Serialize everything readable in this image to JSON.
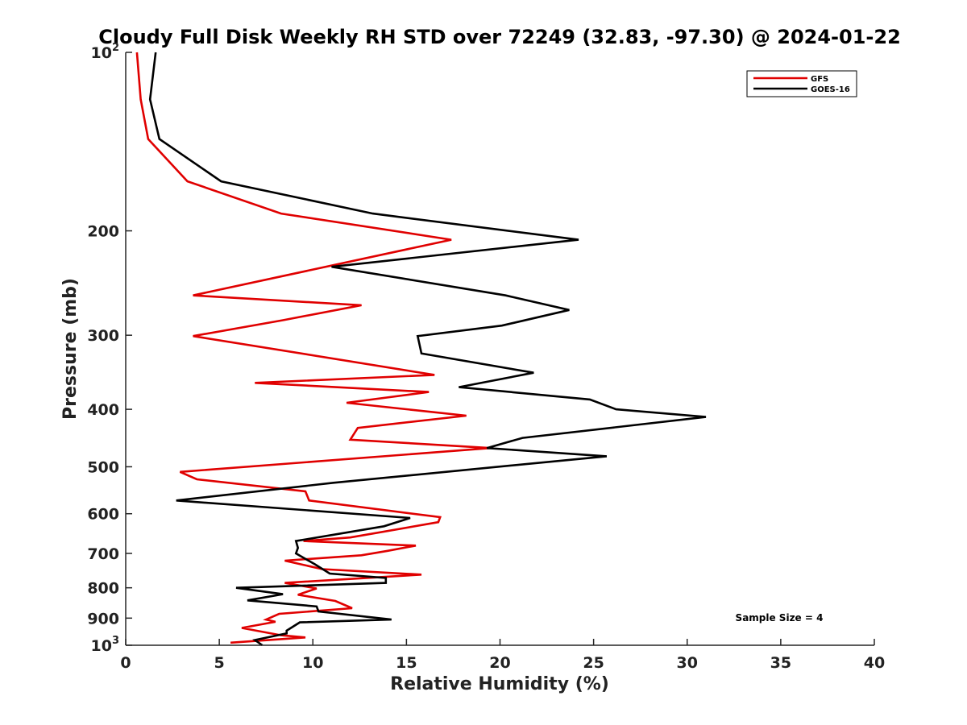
{
  "chart_data": {
    "type": "line",
    "title": "Cloudy Full Disk Weekly RH STD over 72249 (32.83, -97.30) @ 2024-01-22",
    "xlabel": "Relative Humidity (%)",
    "ylabel": "Pressure (mb)",
    "xlim": [
      0,
      40
    ],
    "ylim": [
      100,
      1000
    ],
    "y_scale": "log",
    "y_reversed": true,
    "x_ticks": [
      0,
      5,
      10,
      15,
      20,
      25,
      30,
      35,
      40
    ],
    "x_tick_labels": [
      "0",
      "5",
      "10",
      "15",
      "20",
      "25",
      "30",
      "35",
      "40"
    ],
    "y_ticks": [
      100,
      200,
      300,
      400,
      500,
      600,
      700,
      800,
      900,
      1000
    ],
    "y_tick_labels": [
      {
        "base": "10",
        "exp": "2"
      },
      {
        "base": "200",
        "exp": ""
      },
      {
        "base": "300",
        "exp": ""
      },
      {
        "base": "400",
        "exp": ""
      },
      {
        "base": "500",
        "exp": ""
      },
      {
        "base": "600",
        "exp": ""
      },
      {
        "base": "700",
        "exp": ""
      },
      {
        "base": "800",
        "exp": ""
      },
      {
        "base": "900",
        "exp": ""
      },
      {
        "base": "10",
        "exp": "3"
      }
    ],
    "grid": false,
    "legend_position": "top-right",
    "annotation": "Sample Size = 4",
    "series": [
      {
        "name": "GFS",
        "color": "#e00000",
        "points": [
          [
            0.6,
            100
          ],
          [
            0.8,
            120
          ],
          [
            1.2,
            140
          ],
          [
            3.3,
            165
          ],
          [
            8.3,
            187
          ],
          [
            17.4,
            207
          ],
          [
            3.6,
            257
          ],
          [
            12.6,
            267
          ],
          [
            8.4,
            283
          ],
          [
            3.6,
            301
          ],
          [
            16.5,
            350
          ],
          [
            6.9,
            361
          ],
          [
            16.2,
            374
          ],
          [
            11.8,
            390
          ],
          [
            18.2,
            410
          ],
          [
            12.4,
            430
          ],
          [
            12.0,
            450
          ],
          [
            19.5,
            465
          ],
          [
            2.9,
            510
          ],
          [
            3.8,
            525
          ],
          [
            9.6,
            550
          ],
          [
            9.8,
            570
          ],
          [
            16.8,
            608
          ],
          [
            16.7,
            620
          ],
          [
            12.0,
            658
          ],
          [
            9.5,
            667
          ],
          [
            15.5,
            679
          ],
          [
            14.0,
            693
          ],
          [
            12.6,
            705
          ],
          [
            8.5,
            720
          ],
          [
            10.5,
            744
          ],
          [
            15.8,
            760
          ],
          [
            8.5,
            785
          ],
          [
            10.2,
            802
          ],
          [
            9.2,
            822
          ],
          [
            11.2,
            842
          ],
          [
            12.1,
            866
          ],
          [
            8.2,
            885
          ],
          [
            7.5,
            905
          ],
          [
            8.0,
            913
          ],
          [
            6.2,
            935
          ],
          [
            8.3,
            962
          ],
          [
            9.6,
            970
          ],
          [
            5.6,
            990
          ]
        ]
      },
      {
        "name": "GOES-16",
        "color": "#000000",
        "points": [
          [
            1.6,
            100
          ],
          [
            1.3,
            120
          ],
          [
            1.8,
            140
          ],
          [
            5.1,
            165
          ],
          [
            13.2,
            187
          ],
          [
            24.2,
            207
          ],
          [
            11.0,
            230
          ],
          [
            20.3,
            257
          ],
          [
            23.7,
            272
          ],
          [
            20.1,
            289
          ],
          [
            15.6,
            301
          ],
          [
            15.8,
            322
          ],
          [
            21.8,
            347
          ],
          [
            17.8,
            367
          ],
          [
            24.8,
            385
          ],
          [
            26.2,
            400
          ],
          [
            31.0,
            412
          ],
          [
            21.2,
            447
          ],
          [
            19.3,
            465
          ],
          [
            25.7,
            480
          ],
          [
            11.1,
            532
          ],
          [
            2.7,
            570
          ],
          [
            15.2,
            610
          ],
          [
            13.8,
            630
          ],
          [
            9.1,
            667
          ],
          [
            9.2,
            685
          ],
          [
            9.1,
            700
          ],
          [
            10.1,
            730
          ],
          [
            10.9,
            757
          ],
          [
            13.9,
            770
          ],
          [
            13.9,
            785
          ],
          [
            5.9,
            800
          ],
          [
            8.4,
            820
          ],
          [
            6.5,
            840
          ],
          [
            10.2,
            860
          ],
          [
            10.3,
            877
          ],
          [
            14.2,
            905
          ],
          [
            9.3,
            915
          ],
          [
            8.6,
            945
          ],
          [
            8.6,
            955
          ],
          [
            6.9,
            980
          ],
          [
            7.3,
            1000
          ]
        ]
      }
    ]
  }
}
